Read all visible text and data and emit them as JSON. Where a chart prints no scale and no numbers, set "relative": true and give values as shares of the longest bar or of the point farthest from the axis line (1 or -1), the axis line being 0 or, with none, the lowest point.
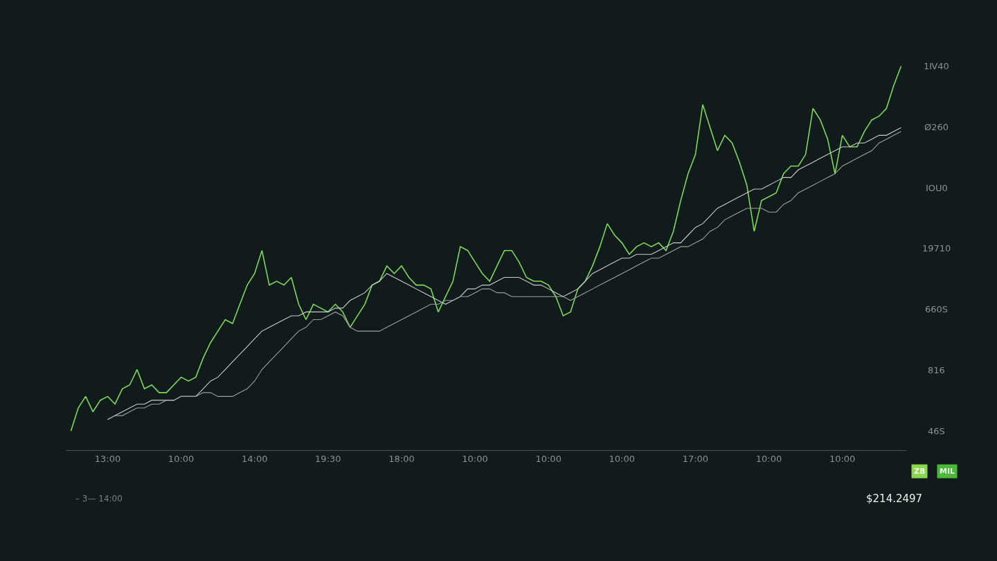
{
  "chart_data": {
    "type": "line",
    "relative": true,
    "categories": [
      null,
      null,
      null,
      null,
      null,
      "13:00",
      null,
      null,
      null,
      null,
      null,
      null,
      null,
      null,
      null,
      "10:00",
      null,
      null,
      null,
      null,
      null,
      null,
      null,
      null,
      null,
      "14:00",
      null,
      null,
      null,
      null,
      null,
      null,
      null,
      null,
      null,
      "19:30",
      null,
      null,
      null,
      null,
      null,
      null,
      null,
      null,
      null,
      "18:00",
      null,
      null,
      null,
      null,
      null,
      null,
      null,
      null,
      null,
      "10:00",
      null,
      null,
      null,
      null,
      null,
      null,
      null,
      null,
      null,
      "10:00",
      null,
      null,
      null,
      null,
      null,
      null,
      null,
      null,
      null,
      "10:00",
      null,
      null,
      null,
      null,
      null,
      null,
      null,
      null,
      null,
      "17:00",
      null,
      null,
      null,
      null,
      null,
      null,
      null,
      null,
      null,
      "10:00",
      null,
      null,
      null,
      null,
      null,
      null,
      null,
      null,
      null,
      "10:00",
      null,
      null,
      null,
      null,
      null,
      null,
      null,
      null
    ],
    "grid": false,
    "series": [
      {
        "color": "#7ed957",
        "values": [
          0.05,
          0.11,
          0.14,
          0.1,
          0.13,
          0.14,
          0.12,
          0.16,
          0.17,
          0.21,
          0.16,
          0.17,
          0.15,
          0.15,
          0.17,
          0.19,
          0.18,
          0.19,
          0.24,
          0.28,
          0.31,
          0.34,
          0.33,
          0.38,
          0.43,
          0.46,
          0.52,
          0.43,
          0.44,
          0.43,
          0.45,
          0.38,
          0.34,
          0.38,
          0.37,
          0.36,
          0.38,
          0.36,
          0.32,
          0.35,
          0.38,
          0.43,
          0.44,
          0.48,
          0.46,
          0.48,
          0.45,
          0.43,
          0.43,
          0.42,
          0.36,
          0.4,
          0.44,
          0.53,
          0.52,
          0.49,
          0.46,
          0.44,
          0.48,
          0.52,
          0.52,
          0.49,
          0.45,
          0.44,
          0.44,
          0.43,
          0.4,
          0.35,
          0.36,
          0.42,
          0.44,
          0.48,
          0.53,
          0.59,
          0.56,
          0.54,
          0.51,
          0.53,
          0.54,
          0.53,
          0.54,
          0.52,
          0.57,
          0.65,
          0.72,
          0.77,
          0.9,
          0.84,
          0.78,
          0.82,
          0.8,
          0.75,
          0.69,
          0.57,
          0.65,
          0.66,
          0.67,
          0.72,
          0.74,
          0.74,
          0.77,
          0.89,
          0.86,
          0.81,
          0.72,
          0.82,
          0.79,
          0.79,
          0.83,
          0.86,
          0.87,
          0.89,
          0.95,
          1.0
        ]
      },
      {
        "color": "#c8cccc",
        "values": [
          null,
          null,
          null,
          null,
          null,
          0.08,
          0.09,
          0.1,
          0.11,
          0.12,
          0.12,
          0.13,
          0.13,
          0.13,
          0.13,
          0.14,
          0.14,
          0.14,
          0.16,
          0.18,
          0.19,
          0.21,
          0.23,
          0.25,
          0.27,
          0.29,
          0.31,
          0.32,
          0.33,
          0.34,
          0.35,
          0.35,
          0.36,
          0.36,
          0.36,
          0.36,
          0.37,
          0.37,
          0.39,
          0.4,
          0.41,
          0.43,
          0.44,
          0.46,
          0.45,
          0.44,
          0.43,
          0.42,
          0.41,
          0.4,
          0.39,
          0.38,
          0.39,
          0.4,
          0.42,
          0.42,
          0.43,
          0.43,
          0.44,
          0.45,
          0.45,
          0.45,
          0.44,
          0.43,
          0.43,
          0.42,
          0.41,
          0.4,
          0.41,
          0.42,
          0.44,
          0.46,
          0.47,
          0.48,
          0.49,
          0.5,
          0.5,
          0.51,
          0.51,
          0.51,
          0.52,
          0.53,
          0.54,
          0.54,
          0.56,
          0.58,
          0.59,
          0.61,
          0.63,
          0.64,
          0.65,
          0.66,
          0.67,
          0.68,
          0.68,
          0.69,
          0.7,
          0.71,
          0.71,
          0.73,
          0.74,
          0.75,
          0.76,
          0.77,
          0.78,
          0.79,
          0.79,
          0.8,
          0.8,
          0.81,
          0.82,
          0.82,
          0.83,
          0.84
        ]
      },
      {
        "color": "#9aa0a0",
        "values": [
          null,
          null,
          null,
          null,
          null,
          0.08,
          0.09,
          0.09,
          0.1,
          0.11,
          0.11,
          0.12,
          0.12,
          0.13,
          0.13,
          0.14,
          0.14,
          0.14,
          0.15,
          0.15,
          0.14,
          0.14,
          0.14,
          0.15,
          0.16,
          0.18,
          0.21,
          0.23,
          0.25,
          0.27,
          0.29,
          0.31,
          0.32,
          0.34,
          0.34,
          0.35,
          0.36,
          0.35,
          0.32,
          0.31,
          0.31,
          0.31,
          0.31,
          0.32,
          0.33,
          0.34,
          0.35,
          0.36,
          0.37,
          0.38,
          0.38,
          0.39,
          0.39,
          0.4,
          0.4,
          0.41,
          0.42,
          0.42,
          0.41,
          0.41,
          0.4,
          0.4,
          0.4,
          0.4,
          0.4,
          0.4,
          0.4,
          0.4,
          0.39,
          0.4,
          0.41,
          0.42,
          0.43,
          0.44,
          0.45,
          0.46,
          0.47,
          0.48,
          0.49,
          0.5,
          0.5,
          0.51,
          0.52,
          0.53,
          0.53,
          0.54,
          0.55,
          0.57,
          0.58,
          0.6,
          0.61,
          0.62,
          0.63,
          0.63,
          0.63,
          0.62,
          0.62,
          0.64,
          0.65,
          0.67,
          0.68,
          0.69,
          0.7,
          0.71,
          0.72,
          0.74,
          0.75,
          0.76,
          0.77,
          0.78,
          0.8,
          0.81,
          0.82,
          0.83
        ]
      }
    ],
    "annotations": [
      "1Ⅳ40",
      "Ø260",
      "IOU0",
      "19710",
      "660S",
      "816",
      "46S",
      "ZB",
      "MIL",
      "– 3— 14:00",
      "$214.2497"
    ]
  }
}
